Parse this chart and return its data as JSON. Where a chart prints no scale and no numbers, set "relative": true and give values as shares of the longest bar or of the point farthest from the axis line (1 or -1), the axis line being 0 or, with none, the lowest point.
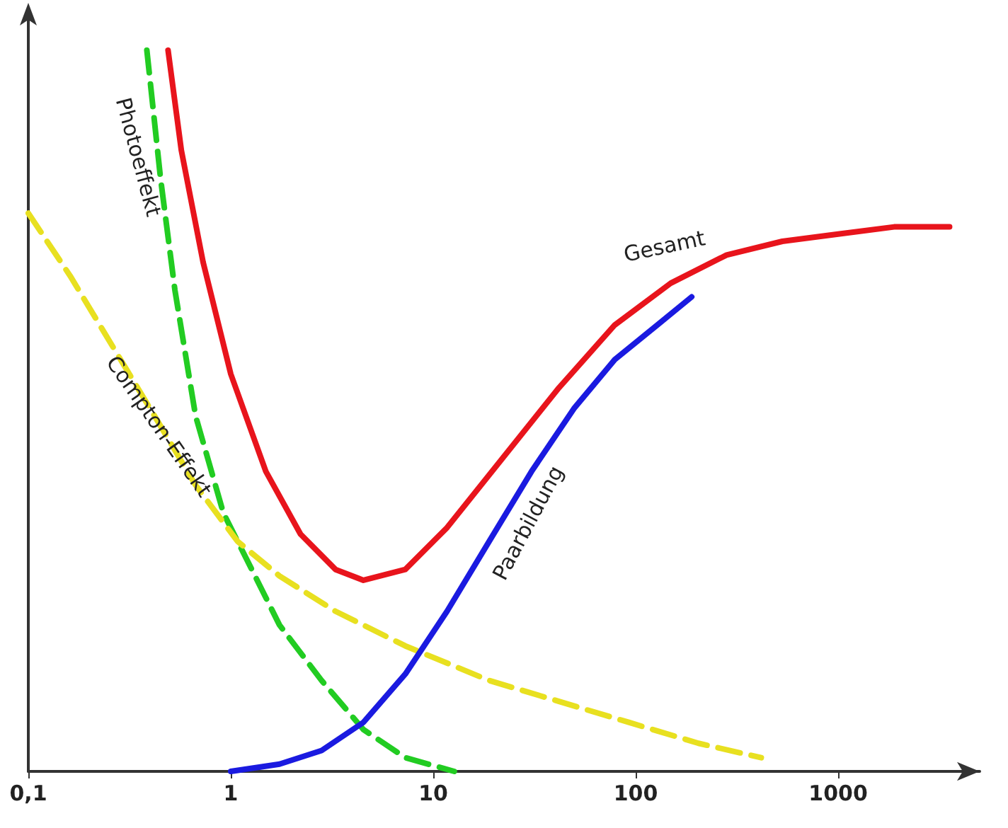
{
  "chart_data": {
    "type": "line",
    "relative": true,
    "log": "x",
    "xlim": [
      0.1,
      5000
    ],
    "xticks": [
      {
        "value": 0.1,
        "label": "0,1"
      },
      1,
      10,
      100,
      1000
    ],
    "tick_labels": "x",
    "grid": false,
    "legend": false,
    "marker": "none",
    "series": [
      {
        "name": "Gesamt",
        "color": "#e8141c",
        "line_style": "solid",
        "x": [
          0.49,
          0.57,
          0.73,
          1,
          1.49,
          2.21,
          3.29,
          4.52,
          7.28,
          11.7,
          22.1,
          41.8,
          78.8,
          149,
          281,
          530,
          1000,
          1888,
          3550
        ],
        "values": [
          1.0,
          0.861,
          0.706,
          0.551,
          0.416,
          0.329,
          0.28,
          0.265,
          0.28,
          0.338,
          0.435,
          0.532,
          0.619,
          0.677,
          0.716,
          0.735,
          0.745,
          0.755,
          0.755
        ]
      },
      {
        "name": "Photoeffekt",
        "color": "#22cc22",
        "line_style": "dashed",
        "x": [
          0.385,
          0.45,
          0.53,
          0.67,
          0.92,
          1.27,
          1.74,
          2.81,
          4.52,
          7.28,
          12.7
        ],
        "values": [
          1.0,
          0.822,
          0.667,
          0.493,
          0.358,
          0.28,
          0.203,
          0.126,
          0.058,
          0.019,
          0
        ]
      },
      {
        "name": "Compton-Effekt",
        "color": "#e8e020",
        "line_style": "dashed",
        "x": [
          0.1,
          0.161,
          0.26,
          0.42,
          0.67,
          1.08,
          1.74,
          3.29,
          7.28,
          18.9,
          41.8,
          92.4,
          204,
          417
        ],
        "values": [
          0.774,
          0.687,
          0.59,
          0.493,
          0.397,
          0.319,
          0.271,
          0.222,
          0.174,
          0.126,
          0.097,
          0.068,
          0.039,
          0.019
        ]
      },
      {
        "name": "Paarbildung",
        "color": "#1a1ae0",
        "line_style": "solid",
        "x": [
          1,
          1.74,
          2.81,
          4.52,
          7.28,
          11.7,
          18.9,
          30.6,
          49.5,
          78.8,
          128,
          189
        ],
        "values": [
          0,
          0.01,
          0.029,
          0.068,
          0.135,
          0.222,
          0.319,
          0.416,
          0.503,
          0.571,
          0.619,
          0.658
        ]
      }
    ]
  }
}
